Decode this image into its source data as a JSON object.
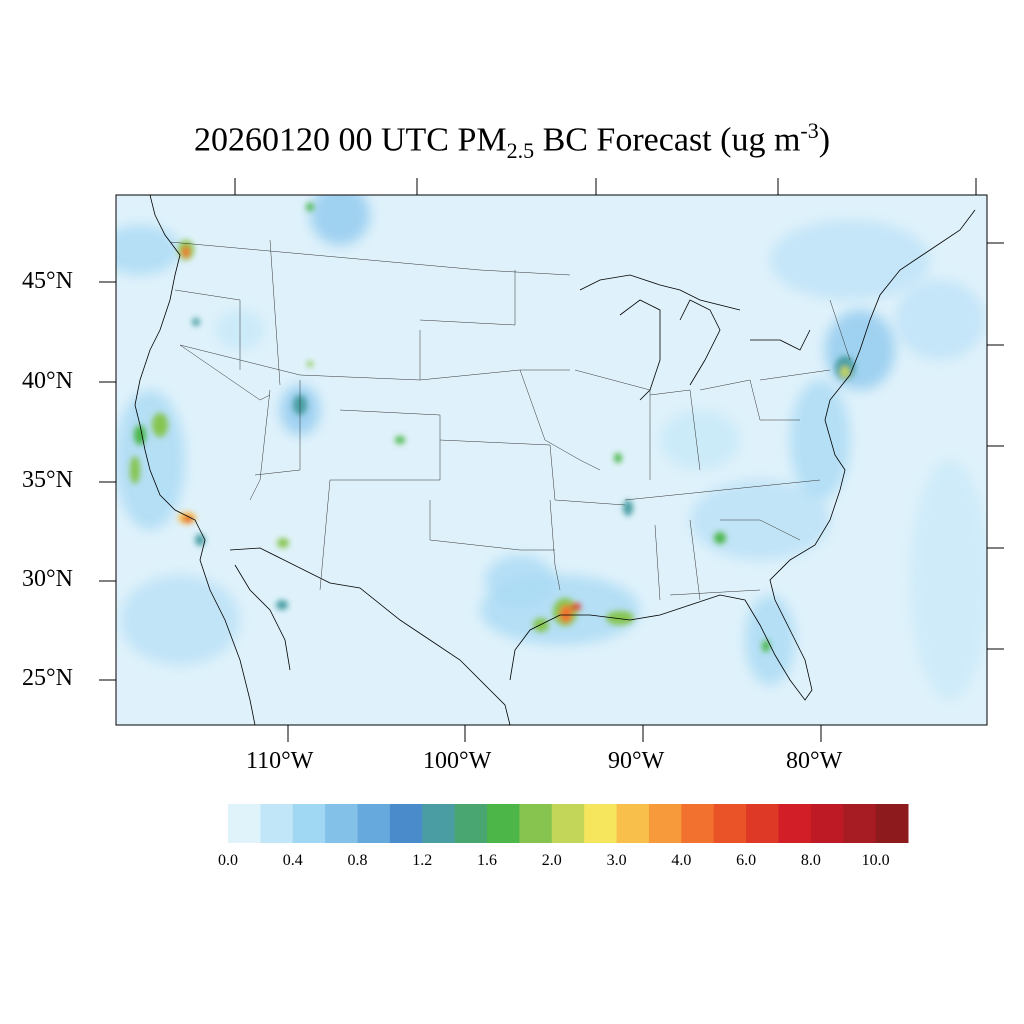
{
  "title": {
    "date_time": "20260120 00 UTC PM",
    "subscript": "2.5",
    "middle": " BC Forecast (ug m",
    "superscript": "-3",
    "end": ")"
  },
  "lat_labels": [
    "45°N",
    "40°N",
    "35°N",
    "30°N",
    "25°N"
  ],
  "lon_labels": [
    "110°W",
    "100°W",
    "90°W",
    "80°W"
  ],
  "colorbar": {
    "colors": [
      "#e0f3fb",
      "#c0e6f7",
      "#a0d8f4",
      "#84c1e8",
      "#66a9dc",
      "#4a8bcb",
      "#4a9ea3",
      "#4aa670",
      "#4cb648",
      "#86c44f",
      "#c4d65a",
      "#f6e65e",
      "#f8bf4b",
      "#f69a3c",
      "#f2712e",
      "#ea5228",
      "#de3926",
      "#d21f27",
      "#bd1a25",
      "#a71b22",
      "#8d1a1c"
    ],
    "labels": [
      "0.0",
      "0.4",
      "0.8",
      "1.2",
      "1.6",
      "2.0",
      "3.0",
      "4.0",
      "6.0",
      "8.0",
      "10.0"
    ]
  }
}
